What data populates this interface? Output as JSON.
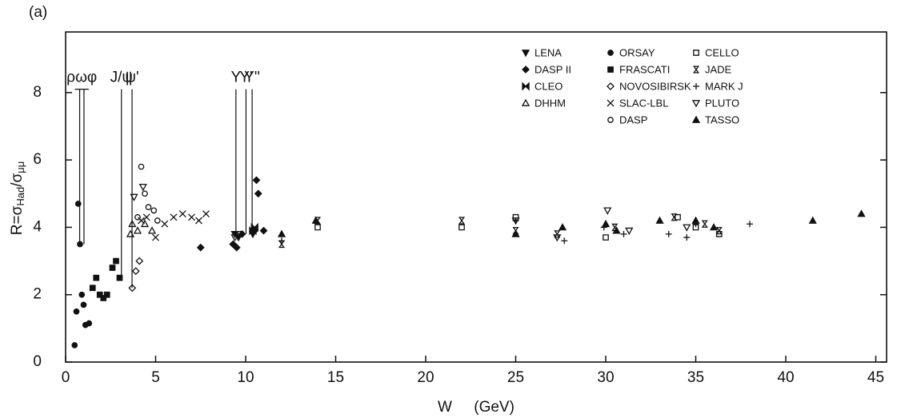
{
  "chart_data": {
    "type": "scatter",
    "panel_label": "(a)",
    "xlabel": "W (GeV)",
    "ylabel_parts": [
      "R=σ",
      "Had",
      "/σ",
      "μμ"
    ],
    "xlim": [
      0,
      45.6
    ],
    "xticks": [
      0,
      5,
      10,
      15,
      20,
      25,
      30,
      35,
      40,
      45
    ],
    "ylim": [
      0,
      9.8
    ],
    "yticks": [
      0,
      2,
      4,
      6,
      8
    ],
    "resonances": [
      {
        "label": "ρωφ",
        "x": [
          0.78,
          1.02
        ],
        "y_range": [
          3.5,
          8.1
        ]
      },
      {
        "label": "J/ψ",
        "x": [
          3.1
        ],
        "y_range": [
          2.5,
          8.1
        ]
      },
      {
        "label": "ψ'",
        "x": [
          3.69
        ],
        "y_range": [
          2.2,
          8.1
        ]
      },
      {
        "label": "Υ",
        "x": [
          9.46
        ],
        "y_range": [
          3.8,
          8.1
        ]
      },
      {
        "label": "Υ'",
        "x": [
          10.02
        ],
        "y_range": [
          3.8,
          8.1
        ]
      },
      {
        "label": "Υ''",
        "x": [
          10.36
        ],
        "y_range": [
          3.9,
          8.1
        ]
      }
    ],
    "series": [
      {
        "name": "LENA",
        "marker": "tri-down-filled",
        "color": "#111",
        "x": [
          9.4,
          9.6,
          10.4
        ],
        "values": [
          3.8,
          3.7,
          3.8
        ]
      },
      {
        "name": "DASP II",
        "marker": "diamond-filled",
        "color": "#111",
        "x": [
          7.5,
          9.3,
          9.5,
          9.8,
          10.5,
          10.6,
          10.7,
          11
        ],
        "values": [
          3.4,
          3.5,
          3.4,
          3.8,
          3.9,
          5.4,
          5.0,
          3.9
        ]
      },
      {
        "name": "CLEO",
        "marker": "bowtie",
        "color": "#111",
        "x": [
          10.4,
          10.5
        ],
        "values": [
          3.9,
          4.0
        ]
      },
      {
        "name": "DHHM",
        "marker": "tri-up-open",
        "color": "#111",
        "x": [
          3.6,
          3.7,
          4.0,
          4.4,
          4.8
        ],
        "values": [
          3.8,
          4.1,
          3.9,
          4.1,
          3.9
        ]
      },
      {
        "name": "ORSAY",
        "marker": "circle-filled",
        "color": "#111",
        "x": [
          0.5,
          0.6,
          0.7,
          0.8,
          0.9,
          1.0,
          1.1,
          1.3
        ],
        "values": [
          0.5,
          1.5,
          4.7,
          3.5,
          2.0,
          1.7,
          1.1,
          1.15
        ]
      },
      {
        "name": "FRASCATI",
        "marker": "square-filled",
        "color": "#111",
        "x": [
          1.5,
          1.7,
          1.9,
          2.1,
          2.3,
          2.6,
          2.8,
          3.0
        ],
        "values": [
          2.2,
          2.5,
          2.0,
          1.9,
          2.0,
          2.8,
          3.0,
          2.5
        ]
      },
      {
        "name": "NOVOSIBIRSK",
        "marker": "diamond-open",
        "color": "#111",
        "x": [
          3.7,
          3.9,
          4.1
        ],
        "values": [
          2.2,
          2.7,
          3.0
        ]
      },
      {
        "name": "SLAC-LBL",
        "marker": "cross",
        "color": "#111",
        "x": [
          4.2,
          4.5,
          5.0,
          5.5,
          6.0,
          6.5,
          7.0,
          7.4,
          7.8
        ],
        "values": [
          4.2,
          4.3,
          3.7,
          4.1,
          4.3,
          4.4,
          4.3,
          4.2,
          4.4
        ]
      },
      {
        "name": "DASP",
        "marker": "circle-open",
        "color": "#111",
        "x": [
          4.0,
          4.2,
          4.4,
          4.6,
          4.9,
          5.1
        ],
        "values": [
          4.3,
          5.8,
          5.0,
          4.6,
          4.5,
          4.2
        ]
      },
      {
        "name": "CELLO",
        "marker": "square-open",
        "color": "#111",
        "x": [
          9.7,
          14,
          22,
          25,
          30,
          34,
          35,
          36.3
        ],
        "values": [
          3.8,
          4.0,
          4.0,
          4.3,
          3.7,
          4.3,
          4.0,
          3.8
        ]
      },
      {
        "name": "JADE",
        "marker": "hourglass",
        "color": "#111",
        "x": [
          12,
          14,
          22,
          25,
          27.3,
          30.5,
          33.8,
          35.5,
          36.3
        ],
        "values": [
          3.5,
          4.2,
          4.2,
          3.9,
          3.8,
          4.0,
          4.3,
          4.1,
          3.9
        ]
      },
      {
        "name": "MARK J",
        "marker": "plus",
        "color": "#111",
        "x": [
          12,
          25,
          27.7,
          29.9,
          31,
          33.5,
          34.5,
          35,
          38
        ],
        "values": [
          3.6,
          4.2,
          3.6,
          4.0,
          3.8,
          3.8,
          3.7,
          4.1,
          4.1
        ]
      },
      {
        "name": "PLUTO",
        "marker": "tri-down-open",
        "color": "#111",
        "x": [
          3.8,
          4.3,
          9.4,
          25,
          27.3,
          30.1,
          31.3,
          34.5
        ],
        "values": [
          4.9,
          5.2,
          3.7,
          4.2,
          3.7,
          4.5,
          3.9,
          4.0
        ]
      },
      {
        "name": "TASSO",
        "marker": "tri-up-filled",
        "color": "#111",
        "x": [
          12,
          13.9,
          25,
          27.6,
          30,
          30.6,
          33,
          35,
          36,
          41.5,
          44.2
        ],
        "values": [
          3.8,
          4.2,
          3.8,
          4.0,
          4.1,
          3.9,
          4.2,
          4.2,
          4.0,
          4.2,
          4.4
        ]
      }
    ]
  }
}
